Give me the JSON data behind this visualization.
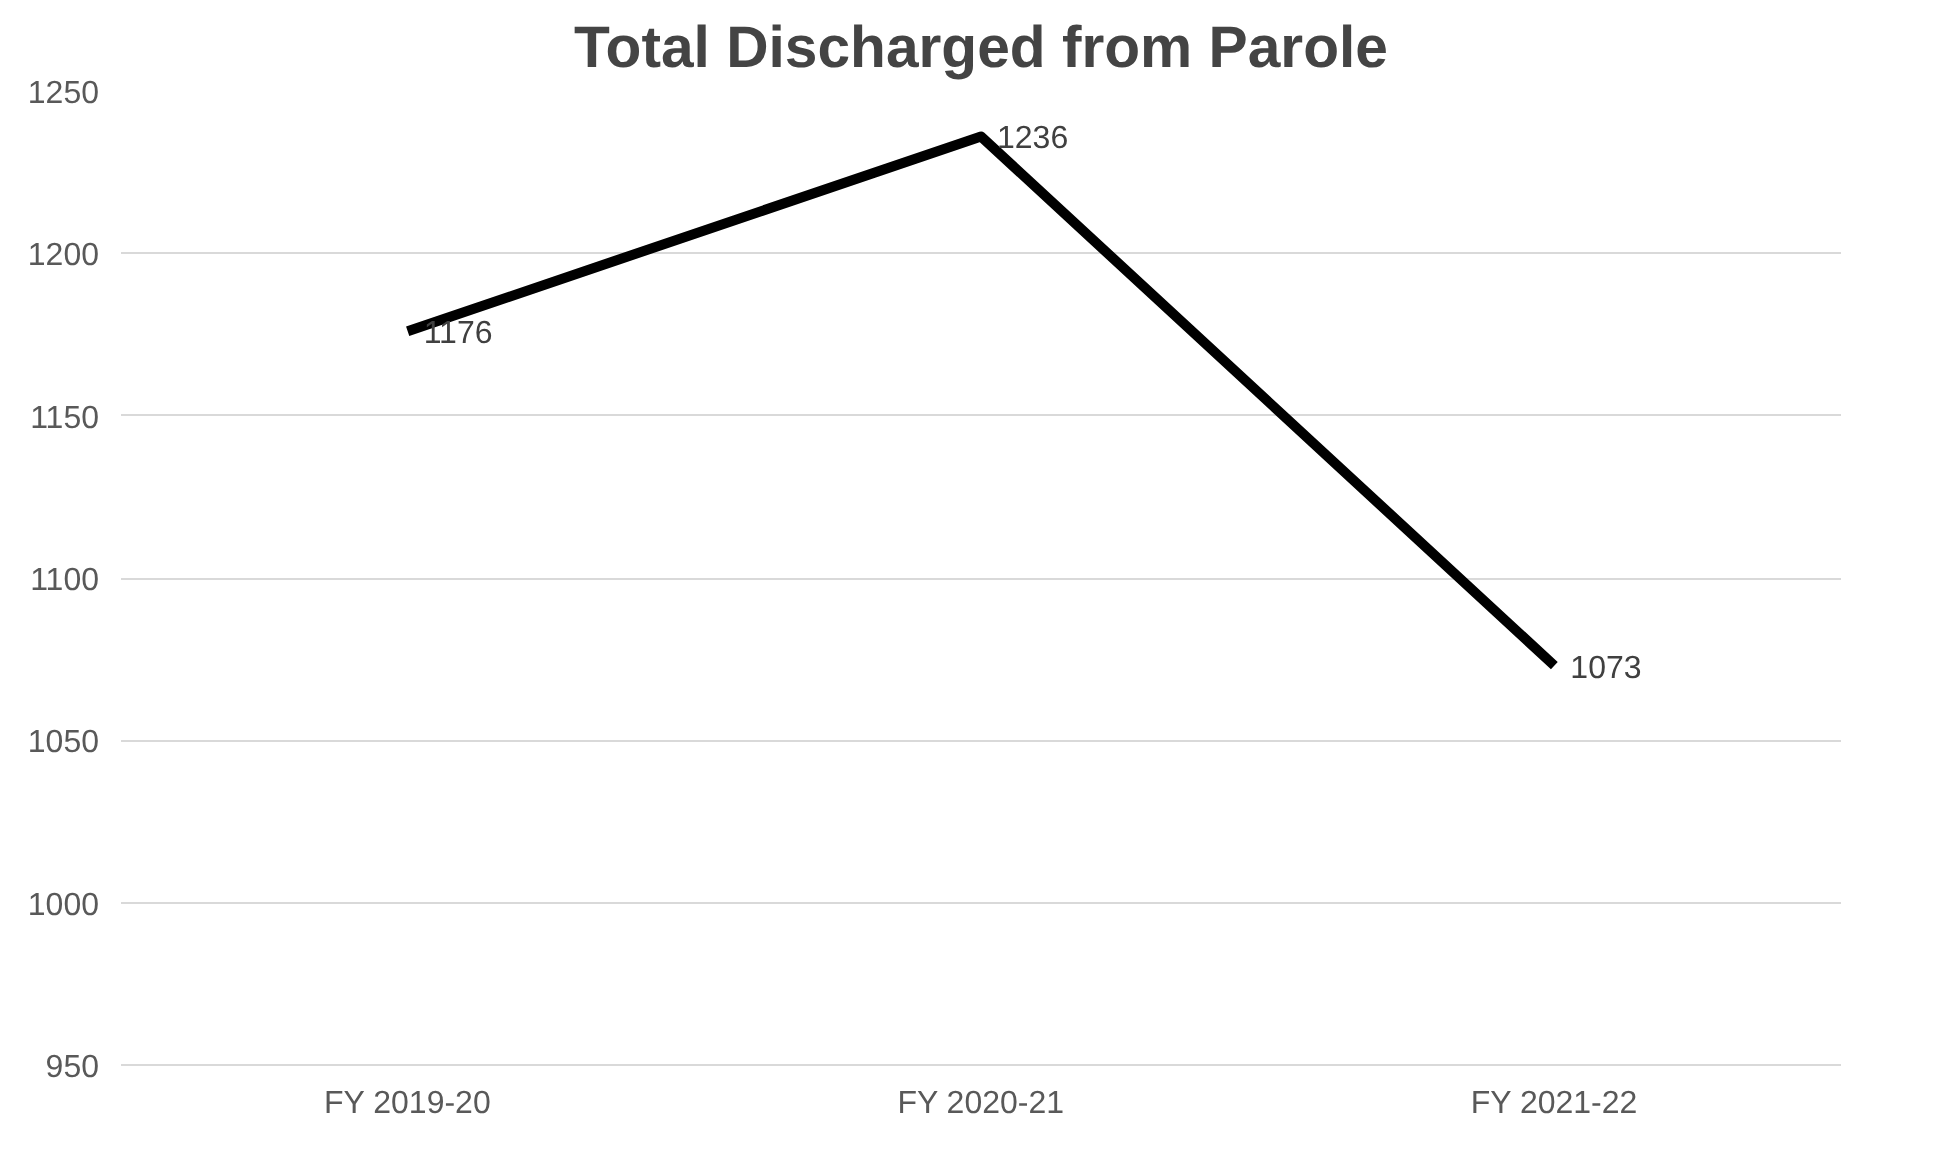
{
  "chart_data": {
    "type": "line",
    "title": "Total Discharged from Parole",
    "categories": [
      "FY 2019-20",
      "FY 2020-21",
      "FY 2021-22"
    ],
    "series": [
      {
        "color": "#000000",
        "values": [
          1176,
          1236,
          1073
        ]
      }
    ],
    "ylim": [
      950,
      1250
    ],
    "yticks": [
      950,
      1000,
      1050,
      1100,
      1150,
      1200,
      1250
    ],
    "grid": "y",
    "data_labels": true,
    "marker": "none",
    "line_style": "solid"
  }
}
